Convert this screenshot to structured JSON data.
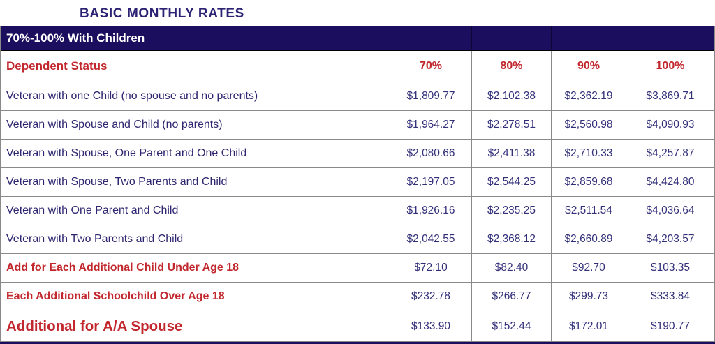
{
  "page_title": "BASIC MONTHLY RATES",
  "banner": {
    "label": "70%-100% With Children"
  },
  "table": {
    "header": {
      "label": "Dependent Status",
      "columns": [
        "70%",
        "80%",
        "90%",
        "100%"
      ]
    },
    "rows": [
      {
        "label": "Veteran with one Child (no spouse and no parents)",
        "style": "navy",
        "values": [
          "$1,809.77",
          "$2,102.38",
          "$2,362.19",
          "$3,869.71"
        ]
      },
      {
        "label": "Veteran with Spouse and Child (no parents)",
        "style": "navy",
        "values": [
          "$1,964.27",
          "$2,278.51",
          "$2,560.98",
          "$4,090.93"
        ]
      },
      {
        "label": "Veteran with Spouse, One Parent and  One Child",
        "style": "navy",
        "values": [
          "$2,080.66",
          "$2,411.38",
          "$2,710.33",
          "$4,257.87"
        ]
      },
      {
        "label": "Veteran with Spouse, Two Parents and Child",
        "style": "navy",
        "values": [
          "$2,197.05",
          "$2,544.25",
          "$2,859.68",
          "$4,424.80"
        ]
      },
      {
        "label": "Veteran with One Parent and Child",
        "style": "navy",
        "values": [
          "$1,926.16",
          "$2,235.25",
          "$2,511.54",
          "$4,036.64"
        ]
      },
      {
        "label": "Veteran with Two Parents and Child",
        "style": "navy",
        "values": [
          "$2,042.55",
          "$2,368.12",
          "$2,660.89",
          "$4,203.57"
        ]
      },
      {
        "label": "Add for Each Additional Child Under Age 18",
        "style": "red",
        "values": [
          "$72.10",
          "$82.40",
          "$92.70",
          "$103.35"
        ]
      },
      {
        "label": "Each Additional Schoolchild Over Age 18",
        "style": "red",
        "values": [
          "$232.78",
          "$266.77",
          "$299.73",
          "$333.84"
        ]
      },
      {
        "label": "Additional for A/A Spouse",
        "style": "red-large",
        "values": [
          "$133.90",
          "$152.44",
          "$172.01",
          "$190.77"
        ]
      }
    ]
  },
  "colors": {
    "banner_navy": "#1b0e5e",
    "title_navy": "#2b2273",
    "label_navy": "#2e2670",
    "value_navy": "#33307a",
    "accent_red": "#c1272d",
    "border_gray": "#8a8a8a"
  }
}
